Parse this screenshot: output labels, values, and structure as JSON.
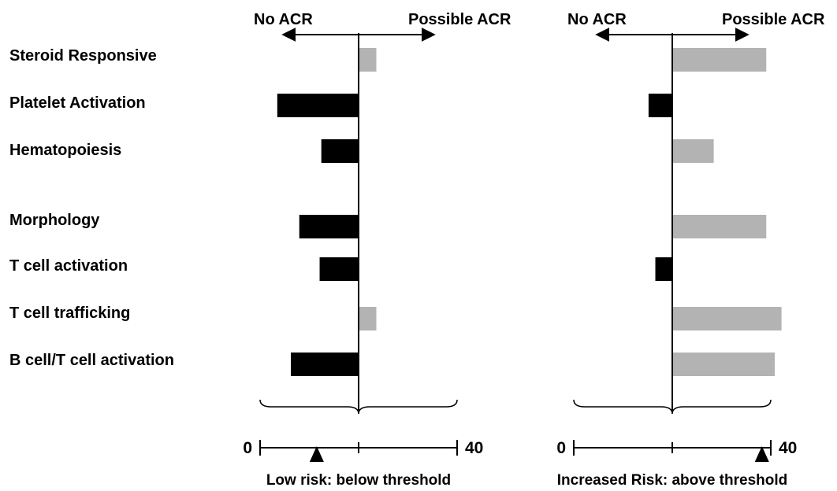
{
  "chart_data": {
    "type": "bar",
    "categories": [
      "Steroid Responsive",
      "Platelet Activation",
      "Hematopoiesis",
      "Morphology",
      "T cell activation",
      "T cell trafficking",
      "B cell/T cell activation"
    ],
    "direction_labels": {
      "negative": "No ACR",
      "positive": "Possible ACR"
    },
    "colors": {
      "negative": "#000000",
      "positive": "#b3b3b3"
    },
    "scale": {
      "min_label": "0",
      "max_label": "40",
      "min": 0,
      "max": 40,
      "midpoint": 20
    },
    "panels": [
      {
        "caption": "Low risk: below threshold",
        "values": [
          1.0,
          -4.8,
          -2.2,
          -3.5,
          -2.3,
          1.0,
          -4.0
        ],
        "score": 11.5
      },
      {
        "caption": "Increased Risk: above threshold",
        "values": [
          5.5,
          -1.4,
          2.4,
          5.5,
          -1.0,
          6.4,
          6.0
        ],
        "score": 38.2
      }
    ]
  }
}
